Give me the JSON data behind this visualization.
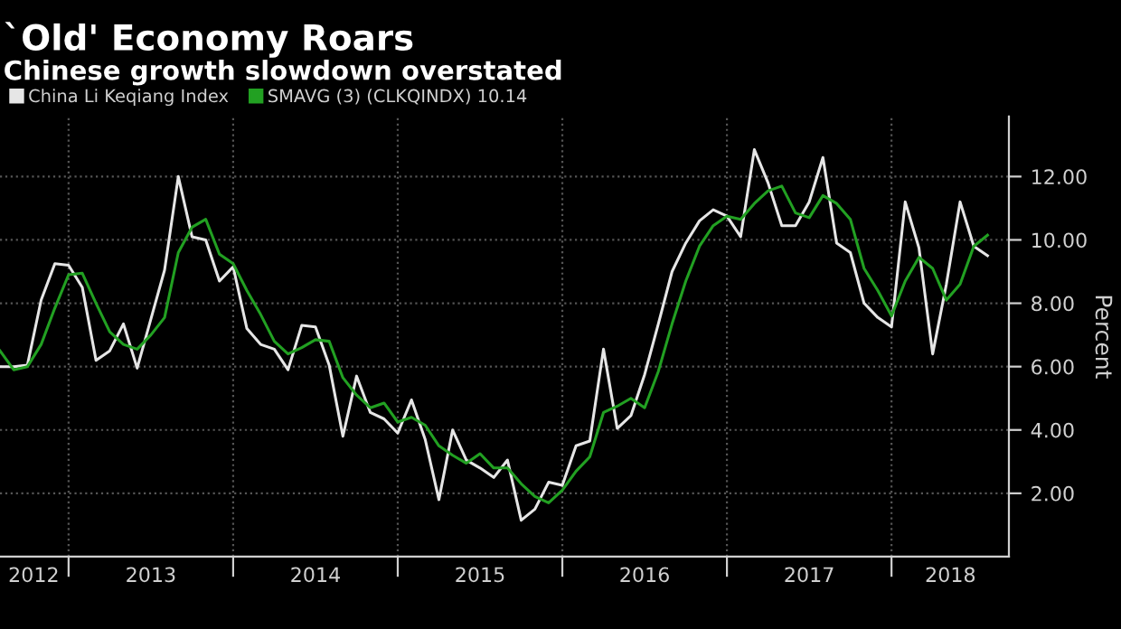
{
  "chart_data": {
    "type": "line",
    "title": "`Old' Economy Roars",
    "subtitle": "Chinese growth slowdown overstated",
    "ylabel": "Percent",
    "x": [
      "2012-08",
      "2012-09",
      "2012-10",
      "2012-11",
      "2012-12",
      "2013-01",
      "2013-02",
      "2013-03",
      "2013-04",
      "2013-05",
      "2013-06",
      "2013-07",
      "2013-08",
      "2013-09",
      "2013-10",
      "2013-11",
      "2013-12",
      "2014-01",
      "2014-02",
      "2014-03",
      "2014-04",
      "2014-05",
      "2014-06",
      "2014-07",
      "2014-08",
      "2014-09",
      "2014-10",
      "2014-11",
      "2014-12",
      "2015-01",
      "2015-02",
      "2015-03",
      "2015-04",
      "2015-05",
      "2015-06",
      "2015-07",
      "2015-08",
      "2015-09",
      "2015-10",
      "2015-11",
      "2015-12",
      "2016-01",
      "2016-02",
      "2016-03",
      "2016-04",
      "2016-05",
      "2016-06",
      "2016-07",
      "2016-08",
      "2016-09",
      "2016-10",
      "2016-11",
      "2016-12",
      "2017-01",
      "2017-02",
      "2017-03",
      "2017-04",
      "2017-05",
      "2017-06",
      "2017-07",
      "2017-08",
      "2017-09",
      "2017-10",
      "2017-11",
      "2017-12",
      "2018-01",
      "2018-02",
      "2018-03",
      "2018-04",
      "2018-05",
      "2018-06",
      "2018-07",
      "2018-08"
    ],
    "series": [
      {
        "name": "China Li Keqiang Index",
        "color": "#e6e6e6",
        "values": [
          6.0,
          6.0,
          6.05,
          8.1,
          9.25,
          9.2,
          8.5,
          6.2,
          6.5,
          7.35,
          5.95,
          7.5,
          9.05,
          12.0,
          10.1,
          10.0,
          8.7,
          9.15,
          7.2,
          6.7,
          6.55,
          5.9,
          7.3,
          7.25,
          6.05,
          3.8,
          5.7,
          4.55,
          4.35,
          3.9,
          4.95,
          3.7,
          1.8,
          4.0,
          3.05,
          2.8,
          2.5,
          3.05,
          1.15,
          1.5,
          2.35,
          2.25,
          3.5,
          3.65,
          6.55,
          4.05,
          4.45,
          5.75,
          7.35,
          9.0,
          9.9,
          10.6,
          10.95,
          10.75,
          10.1,
          12.85,
          11.8,
          10.45,
          10.45,
          11.2,
          12.6,
          9.9,
          9.6,
          8.0,
          7.55,
          7.25,
          11.2,
          9.75,
          6.4,
          8.6,
          11.2,
          9.8,
          9.5
        ]
      },
      {
        "name": "SMAVG (3) (CLKQINDX) 10.14",
        "color": "#22a022",
        "values": [
          6.5,
          5.9,
          6.0,
          6.7,
          7.85,
          8.9,
          8.95,
          8.0,
          7.1,
          6.7,
          6.55,
          7.0,
          7.55,
          9.6,
          10.4,
          10.65,
          9.55,
          9.25,
          8.4,
          7.65,
          6.8,
          6.4,
          6.6,
          6.85,
          6.8,
          5.65,
          5.1,
          4.7,
          4.85,
          4.25,
          4.4,
          4.15,
          3.5,
          3.2,
          2.95,
          3.25,
          2.8,
          2.8,
          2.3,
          1.9,
          1.7,
          2.1,
          2.7,
          3.15,
          4.55,
          4.75,
          5.0,
          4.7,
          5.85,
          7.35,
          8.7,
          9.8,
          10.45,
          10.75,
          10.65,
          11.15,
          11.55,
          11.7,
          10.85,
          10.7,
          11.4,
          11.15,
          10.65,
          9.1,
          8.4,
          7.6,
          8.7,
          9.45,
          9.1,
          8.1,
          8.6,
          9.8,
          10.15
        ]
      }
    ],
    "xlim": [
      "2012-08",
      "2018-09-18"
    ],
    "xticks": [
      {
        "value": "2013-01",
        "label": null
      },
      {
        "value": "2014-01",
        "label": null
      },
      {
        "value": "2015-01",
        "label": null
      },
      {
        "value": "2016-01",
        "label": null
      },
      {
        "value": "2017-01",
        "label": null
      },
      {
        "value": "2018-01",
        "label": null
      },
      {
        "value": "2012-10-15",
        "label": "2012"
      },
      {
        "value": "2013-07",
        "label": "2013"
      },
      {
        "value": "2014-07",
        "label": "2014"
      },
      {
        "value": "2015-07",
        "label": "2015"
      },
      {
        "value": "2016-07",
        "label": "2016"
      },
      {
        "value": "2017-07",
        "label": "2017"
      },
      {
        "value": "2018-05-10",
        "label": "2018"
      }
    ],
    "ylim": [
      0,
      13.9
    ],
    "yticks": [
      {
        "value": 2,
        "label": "2.00"
      },
      {
        "value": 4,
        "label": "4.00"
      },
      {
        "value": 6,
        "label": "6.00"
      },
      {
        "value": 8,
        "label": "8.00"
      },
      {
        "value": 10,
        "label": "10.00"
      },
      {
        "value": 12,
        "label": "12.00"
      }
    ],
    "grid": true,
    "legend": "top left",
    "marker": "none",
    "line_style": "solid"
  }
}
